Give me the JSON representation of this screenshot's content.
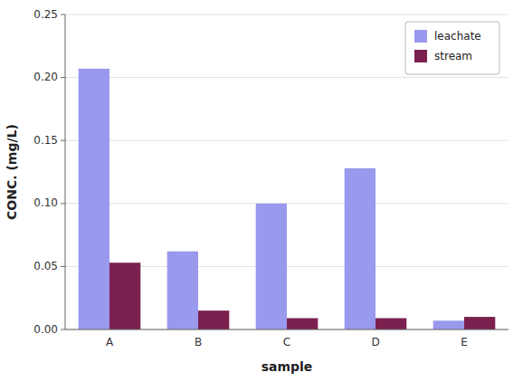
{
  "chart_data": {
    "type": "bar",
    "categories": [
      "A",
      "B",
      "C",
      "D",
      "E"
    ],
    "series": [
      {
        "name": "leachate",
        "color": "#9999ee",
        "values": [
          0.207,
          0.062,
          0.1,
          0.128,
          0.007
        ]
      },
      {
        "name": "stream",
        "color": "#7b2150",
        "values": [
          0.053,
          0.015,
          0.009,
          0.009,
          0.01
        ]
      }
    ],
    "xlabel": "sample",
    "ylabel": "CONC. (mg/L)",
    "ylim": [
      0,
      0.25
    ],
    "yticks": [
      {
        "value": 0,
        "label": "0.00"
      },
      {
        "value": 0.05,
        "label": "0.05"
      },
      {
        "value": 0.1,
        "label": "0.10"
      },
      {
        "value": 0.15,
        "label": "0.15"
      },
      {
        "value": 0.2,
        "label": "0.20"
      },
      {
        "value": 0.25,
        "label": "0.25"
      }
    ],
    "grid": true,
    "legend": "upper right"
  }
}
